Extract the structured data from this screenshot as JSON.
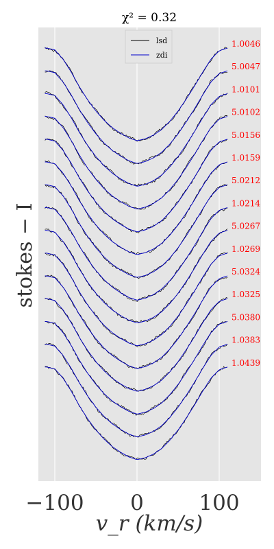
{
  "chart_data": {
    "type": "line",
    "title": "χ² = 0.32",
    "xlabel": "v_r (km/s)",
    "ylabel": "stokes − I",
    "xlim": [
      -120,
      150
    ],
    "x_ticks": [
      "−100",
      "0",
      "100"
    ],
    "x_tick_values": [
      -100,
      0,
      100
    ],
    "grid": true,
    "legend": {
      "placement": "top-center",
      "entries": [
        {
          "label": "lsd",
          "color": "#000000"
        },
        {
          "label": "zdi",
          "color": "#0000cc"
        }
      ]
    },
    "phases": [
      "1.0046",
      "5.0047",
      "1.0101",
      "5.0102",
      "5.0156",
      "1.0159",
      "5.0212",
      "1.0214",
      "5.0267",
      "1.0269",
      "5.0324",
      "1.0325",
      "5.0380",
      "1.0383",
      "1.0439"
    ],
    "line_profile": {
      "x": [
        -110,
        -100,
        -90,
        -80,
        -70,
        -60,
        -50,
        -40,
        -30,
        -20,
        -10,
        0,
        10,
        20,
        30,
        40,
        50,
        60,
        70,
        80,
        90,
        100,
        110
      ],
      "relative_depth": [
        0.0,
        0.02,
        0.12,
        0.26,
        0.42,
        0.56,
        0.68,
        0.78,
        0.86,
        0.92,
        0.97,
        1.0,
        0.98,
        0.94,
        0.88,
        0.79,
        0.68,
        0.55,
        0.41,
        0.26,
        0.12,
        0.03,
        0.0
      ]
    },
    "colors": {
      "observed": "#000000",
      "model": "#0000cc",
      "phase_label": "#ff0000"
    }
  }
}
